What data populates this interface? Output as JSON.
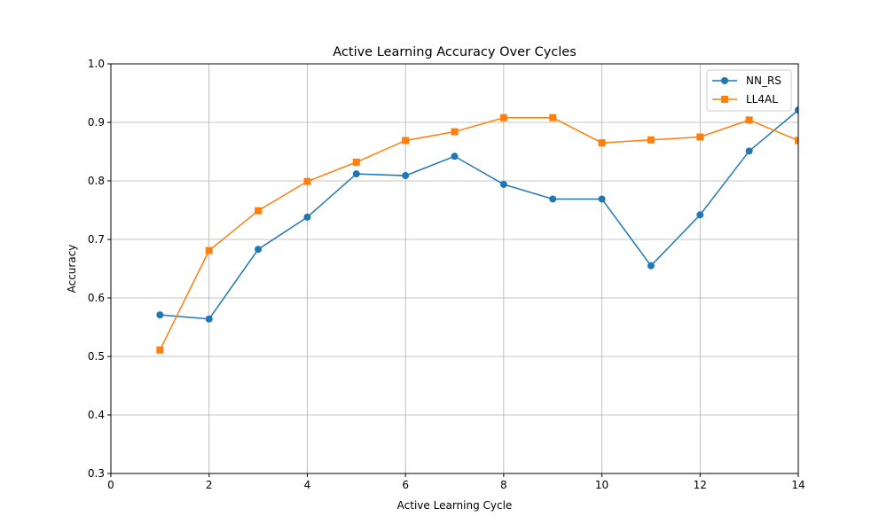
{
  "chart_data": {
    "type": "line",
    "title": "Active Learning Accuracy Over Cycles",
    "xlabel": "Active Learning Cycle",
    "ylabel": "Accuracy",
    "xlim": [
      0,
      14
    ],
    "ylim": [
      0.3,
      1.0
    ],
    "xticks": [
      0,
      2,
      4,
      6,
      8,
      10,
      12,
      14
    ],
    "yticks": [
      0.3,
      0.4,
      0.5,
      0.6,
      0.7,
      0.8,
      0.9,
      1.0
    ],
    "xtick_labels": [
      "0",
      "2",
      "4",
      "6",
      "8",
      "10",
      "12",
      "14"
    ],
    "ytick_labels": [
      "0.3",
      "0.4",
      "0.5",
      "0.6",
      "0.7",
      "0.8",
      "0.9",
      "1.0"
    ],
    "grid": true,
    "legend_position": "top-right",
    "x": [
      1,
      2,
      3,
      4,
      5,
      6,
      7,
      8,
      9,
      10,
      11,
      12,
      13,
      14
    ],
    "series": [
      {
        "name": "NN_RS",
        "color": "#1f77b4",
        "marker": "circle",
        "values": [
          0.571,
          0.564,
          0.683,
          0.738,
          0.812,
          0.809,
          0.842,
          0.794,
          0.769,
          0.769,
          0.655,
          0.742,
          0.851,
          0.921
        ]
      },
      {
        "name": "LL4AL",
        "color": "#ff7f0e",
        "marker": "square",
        "values": [
          0.511,
          0.681,
          0.749,
          0.799,
          0.832,
          0.869,
          0.884,
          0.908,
          0.908,
          0.865,
          0.87,
          0.875,
          0.904,
          0.869
        ]
      }
    ]
  }
}
